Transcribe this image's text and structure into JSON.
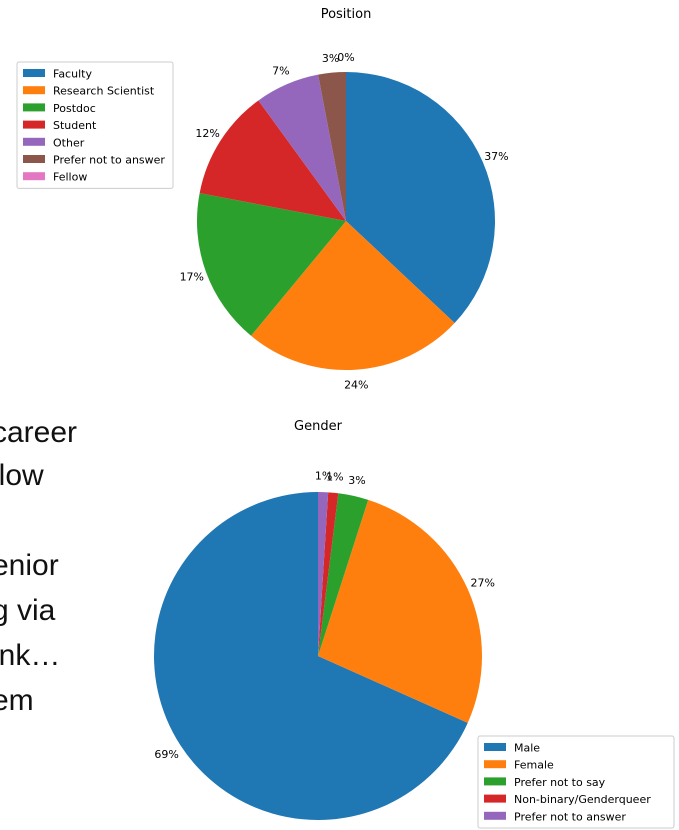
{
  "slide_text_fragments": [
    "career",
    "llow",
    "enior",
    "g via",
    "ink…",
    "em"
  ],
  "chart_data": [
    {
      "type": "pie",
      "title": "Position",
      "categories": [
        "Faculty",
        "Research Scientist",
        "Postdoc",
        "Student",
        "Other",
        "Prefer not to answer",
        "Fellow"
      ],
      "values": [
        37,
        24,
        17,
        12,
        7,
        3,
        0
      ],
      "labels": [
        "37%",
        "24%",
        "17%",
        "12%",
        "7%",
        "3%",
        "0%"
      ],
      "colors": [
        "#1f77b4",
        "#ff7f0e",
        "#2ca02c",
        "#d62728",
        "#9467bd",
        "#8c564b",
        "#e377c2"
      ],
      "start_angle": 90,
      "direction": "clockwise",
      "legend": "left"
    },
    {
      "type": "pie",
      "title": "Gender",
      "categories": [
        "Male",
        "Female",
        "Prefer not to say",
        "Non-binary/Genderqueer",
        "Prefer not to answer"
      ],
      "values": [
        69,
        27,
        3,
        1,
        1
      ],
      "labels": [
        "69%",
        "27%",
        "3%",
        "1%",
        "1%"
      ],
      "colors": [
        "#1f77b4",
        "#ff7f0e",
        "#2ca02c",
        "#d62728",
        "#9467bd"
      ],
      "start_angle": 90,
      "direction": "counterclockwise",
      "legend": "lower-right"
    }
  ]
}
